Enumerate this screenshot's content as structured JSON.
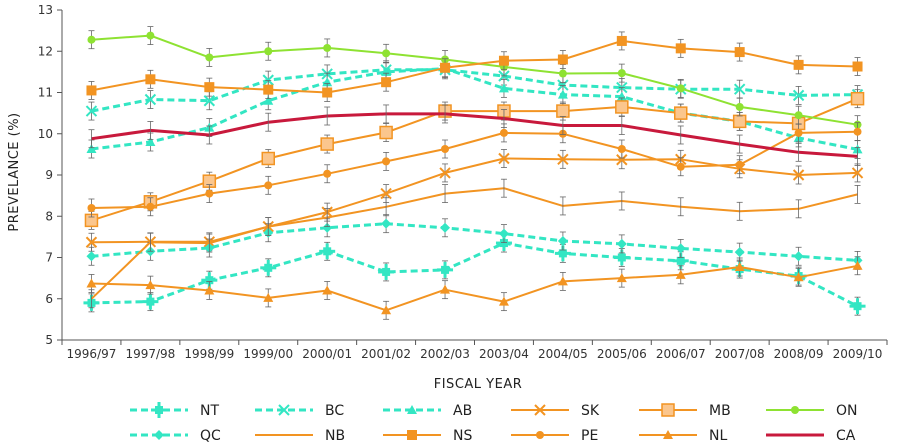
{
  "chart_data": {
    "type": "line",
    "title": "",
    "xlabel": "FISCAL YEAR",
    "ylabel": "PREVELANCE (%)",
    "ylim": [
      5,
      13
    ],
    "yticks": [
      5,
      6,
      7,
      8,
      9,
      10,
      11,
      12,
      13
    ],
    "grid": "none",
    "legend_position": "bottom",
    "categories": [
      "1996/97",
      "1997/98",
      "1998/99",
      "1999/00",
      "2000/01",
      "2001/02",
      "2002/03",
      "2003/04",
      "2004/05",
      "2005/06",
      "2006/07",
      "2007/08",
      "2008/09",
      "2009/10"
    ],
    "series": [
      {
        "name": "NT",
        "color": "#33e6c3",
        "dash": true,
        "marker": "square-plus",
        "width": 3,
        "values": [
          5.9,
          5.93,
          6.45,
          6.75,
          7.15,
          6.65,
          6.7,
          7.35,
          7.1,
          7.0,
          6.92,
          6.72,
          6.55,
          5.82
        ]
      },
      {
        "name": "BC",
        "color": "#33e6c3",
        "dash": true,
        "marker": "x",
        "width": 3,
        "values": [
          10.55,
          10.83,
          10.8,
          11.3,
          11.45,
          11.55,
          11.55,
          11.4,
          11.18,
          11.12,
          11.08,
          11.08,
          10.93,
          10.95
        ]
      },
      {
        "name": "AB",
        "color": "#33e6c3",
        "dash": true,
        "marker": "triangle",
        "width": 3,
        "values": [
          9.63,
          9.8,
          10.15,
          10.8,
          11.25,
          11.5,
          11.58,
          11.1,
          10.95,
          10.9,
          10.5,
          10.3,
          9.9,
          9.62
        ]
      },
      {
        "name": "SK",
        "color": "#f29422",
        "dash": false,
        "marker": "x",
        "width": 2,
        "values": [
          7.37,
          7.38,
          7.38,
          7.75,
          8.1,
          8.55,
          9.05,
          9.4,
          9.38,
          9.37,
          9.38,
          9.15,
          9.0,
          9.05
        ]
      },
      {
        "name": "MB",
        "color": "#f29422",
        "dash": false,
        "marker": "square-outline",
        "width": 2,
        "values": [
          7.9,
          8.35,
          8.85,
          9.4,
          9.75,
          10.03,
          10.55,
          10.55,
          10.55,
          10.65,
          10.5,
          10.3,
          10.25,
          10.85
        ]
      },
      {
        "name": "ON",
        "color": "#8ee232",
        "dash": false,
        "marker": "circle",
        "width": 2,
        "values": [
          12.28,
          12.38,
          11.85,
          12.0,
          12.08,
          11.95,
          11.8,
          11.62,
          11.46,
          11.47,
          11.1,
          10.65,
          10.45,
          10.22
        ]
      },
      {
        "name": "QC",
        "color": "#33e6c3",
        "dash": true,
        "marker": "diamond",
        "width": 3,
        "values": [
          7.03,
          7.15,
          7.23,
          7.6,
          7.72,
          7.82,
          7.72,
          7.58,
          7.4,
          7.33,
          7.22,
          7.13,
          7.03,
          6.93
        ]
      },
      {
        "name": "NB",
        "color": "#f29422",
        "dash": false,
        "marker": "none",
        "width": 2,
        "values": [
          6.0,
          7.37,
          7.35,
          7.75,
          7.97,
          8.23,
          8.55,
          8.68,
          8.25,
          8.37,
          8.23,
          8.12,
          8.18,
          8.53
        ]
      },
      {
        "name": "NS",
        "color": "#f29422",
        "dash": false,
        "marker": "square",
        "width": 2,
        "values": [
          11.05,
          11.32,
          11.13,
          11.07,
          11.0,
          11.25,
          11.6,
          11.77,
          11.8,
          12.25,
          12.07,
          11.98,
          11.67,
          11.63
        ]
      },
      {
        "name": "PE",
        "color": "#f29422",
        "dash": false,
        "marker": "circle",
        "width": 2,
        "values": [
          8.2,
          8.23,
          8.55,
          8.75,
          9.03,
          9.33,
          9.63,
          10.02,
          10.0,
          9.63,
          9.2,
          9.25,
          10.02,
          10.05
        ]
      },
      {
        "name": "NL",
        "color": "#f29422",
        "dash": false,
        "marker": "triangle",
        "width": 2,
        "values": [
          6.37,
          6.33,
          6.2,
          6.02,
          6.2,
          5.72,
          6.22,
          5.93,
          6.42,
          6.5,
          6.58,
          6.77,
          6.52,
          6.8
        ]
      },
      {
        "name": "CA",
        "color": "#c8193c",
        "dash": false,
        "marker": "none",
        "width": 3,
        "values": [
          9.88,
          10.08,
          9.97,
          10.28,
          10.43,
          10.48,
          10.48,
          10.37,
          10.2,
          10.2,
          9.97,
          9.75,
          9.55,
          9.45
        ]
      }
    ]
  }
}
